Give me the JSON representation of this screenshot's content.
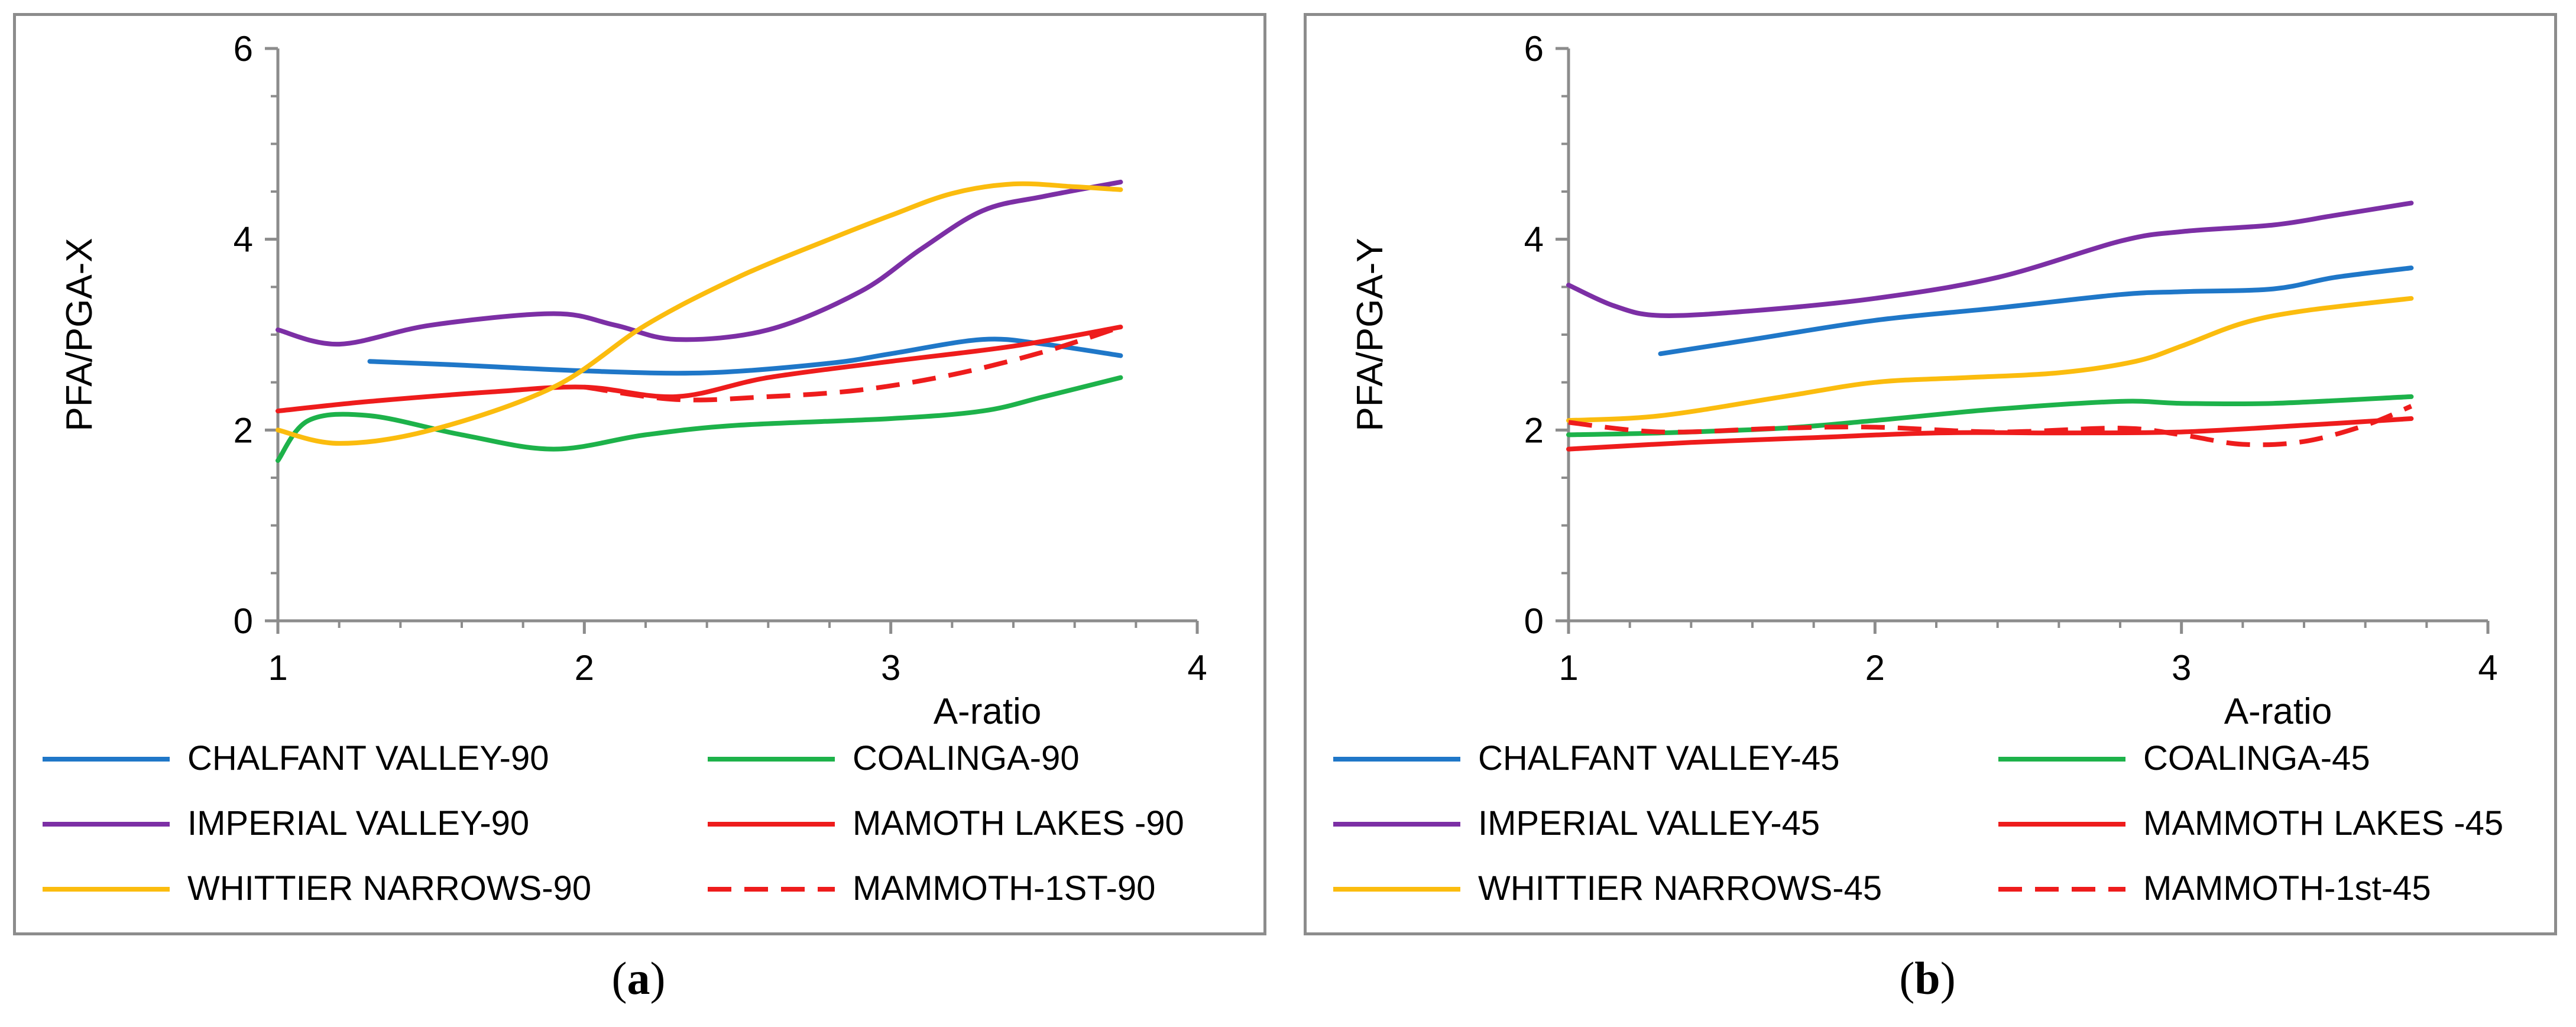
{
  "chart_data": [
    {
      "type": "line",
      "panel": "a",
      "caption": "a",
      "xlabel": "A-ratio",
      "ylabel": "PFA/PGA-X",
      "xlim": [
        1,
        4
      ],
      "ylim": [
        0,
        6
      ],
      "xticks": [
        "1",
        "2",
        "3",
        "4"
      ],
      "yticks": [
        "0",
        "2",
        "4",
        "6"
      ],
      "grid": false,
      "legend_position": "bottom",
      "series": [
        {
          "name": "CHALFANT VALLEY-90",
          "color": "#1f77c8",
          "dash": false,
          "x": [
            1.3,
            1.6,
            2.0,
            2.4,
            2.8,
            3.0,
            3.3,
            3.5,
            3.75
          ],
          "y": [
            2.72,
            2.68,
            2.62,
            2.6,
            2.7,
            2.8,
            2.95,
            2.9,
            2.78
          ]
        },
        {
          "name": "COALINGA-90",
          "color": "#1db24a",
          "dash": false,
          "x": [
            1.0,
            1.1,
            1.3,
            1.6,
            1.9,
            2.2,
            2.5,
            3.0,
            3.3,
            3.5,
            3.75
          ],
          "y": [
            1.68,
            2.1,
            2.15,
            1.95,
            1.8,
            1.95,
            2.05,
            2.12,
            2.2,
            2.35,
            2.55
          ]
        },
        {
          "name": "IMPERIAL VALLEY-90",
          "color": "#7c2fa5",
          "dash": false,
          "x": [
            1.0,
            1.2,
            1.5,
            1.9,
            2.1,
            2.3,
            2.6,
            2.9,
            3.1,
            3.3,
            3.5,
            3.75
          ],
          "y": [
            3.05,
            2.9,
            3.1,
            3.22,
            3.1,
            2.95,
            3.05,
            3.45,
            3.9,
            4.3,
            4.45,
            4.6
          ]
        },
        {
          "name": "MAMOTH LAKES -90",
          "color": "#ee1c1c",
          "dash": false,
          "x": [
            1.0,
            1.3,
            1.7,
            2.0,
            2.3,
            2.6,
            3.0,
            3.4,
            3.75
          ],
          "y": [
            2.2,
            2.3,
            2.4,
            2.45,
            2.35,
            2.55,
            2.72,
            2.88,
            3.08
          ]
        },
        {
          "name": "WHITTIER NARROWS-90",
          "color": "#fbbc0e",
          "dash": false,
          "x": [
            1.0,
            1.2,
            1.5,
            1.9,
            2.2,
            2.5,
            2.8,
            3.0,
            3.2,
            3.4,
            3.6,
            3.75
          ],
          "y": [
            2.0,
            1.86,
            2.0,
            2.45,
            3.1,
            3.6,
            4.0,
            4.25,
            4.48,
            4.58,
            4.55,
            4.52
          ]
        },
        {
          "name": "MAMMOTH-1ST-90",
          "color": "#ee1c1c",
          "dash": true,
          "x": [
            2.0,
            2.3,
            2.6,
            2.9,
            3.2,
            3.5,
            3.75
          ],
          "y": [
            2.45,
            2.32,
            2.35,
            2.42,
            2.58,
            2.82,
            3.08
          ]
        }
      ]
    },
    {
      "type": "line",
      "panel": "b",
      "caption": "b",
      "xlabel": "A-ratio",
      "ylabel": "PFA/PGA-Y",
      "xlim": [
        1,
        4
      ],
      "ylim": [
        0,
        6
      ],
      "xticks": [
        "1",
        "2",
        "3",
        "4"
      ],
      "yticks": [
        "0",
        "2",
        "4",
        "6"
      ],
      "grid": false,
      "legend_position": "bottom",
      "series": [
        {
          "name": "CHALFANT VALLEY-45",
          "color": "#1f77c8",
          "dash": false,
          "x": [
            1.3,
            1.6,
            2.0,
            2.4,
            2.8,
            3.0,
            3.3,
            3.5,
            3.75
          ],
          "y": [
            2.8,
            2.95,
            3.15,
            3.28,
            3.42,
            3.45,
            3.48,
            3.6,
            3.7
          ]
        },
        {
          "name": "COALINGA-45",
          "color": "#1db24a",
          "dash": false,
          "x": [
            1.0,
            1.3,
            1.7,
            2.0,
            2.4,
            2.8,
            3.0,
            3.3,
            3.75
          ],
          "y": [
            1.95,
            1.97,
            2.02,
            2.1,
            2.22,
            2.3,
            2.28,
            2.28,
            2.35
          ]
        },
        {
          "name": "IMPERIAL VALLEY-45",
          "color": "#7c2fa5",
          "dash": false,
          "x": [
            1.0,
            1.15,
            1.3,
            1.6,
            2.0,
            2.4,
            2.8,
            3.0,
            3.3,
            3.5,
            3.75
          ],
          "y": [
            3.52,
            3.3,
            3.2,
            3.25,
            3.38,
            3.6,
            3.98,
            4.08,
            4.15,
            4.25,
            4.38
          ]
        },
        {
          "name": "MAMMOTH LAKES -45",
          "color": "#ee1c1c",
          "dash": false,
          "x": [
            1.0,
            1.4,
            1.8,
            2.2,
            2.6,
            3.0,
            3.4,
            3.75
          ],
          "y": [
            1.8,
            1.87,
            1.92,
            1.97,
            1.97,
            1.98,
            2.05,
            2.12
          ]
        },
        {
          "name": "WHITTIER NARROWS-45",
          "color": "#fbbc0e",
          "dash": false,
          "x": [
            1.0,
            1.3,
            1.7,
            2.0,
            2.3,
            2.6,
            2.85,
            3.0,
            3.2,
            3.4,
            3.75
          ],
          "y": [
            2.1,
            2.15,
            2.35,
            2.5,
            2.55,
            2.6,
            2.72,
            2.88,
            3.12,
            3.25,
            3.38
          ]
        },
        {
          "name": "MAMMOTH-1st-45",
          "color": "#ee1c1c",
          "dash": true,
          "x": [
            1.0,
            1.3,
            1.7,
            2.0,
            2.4,
            2.8,
            3.0,
            3.2,
            3.4,
            3.6,
            3.75
          ],
          "y": [
            2.08,
            1.98,
            2.02,
            2.03,
            1.98,
            2.02,
            1.95,
            1.85,
            1.88,
            2.05,
            2.25
          ]
        }
      ]
    }
  ]
}
